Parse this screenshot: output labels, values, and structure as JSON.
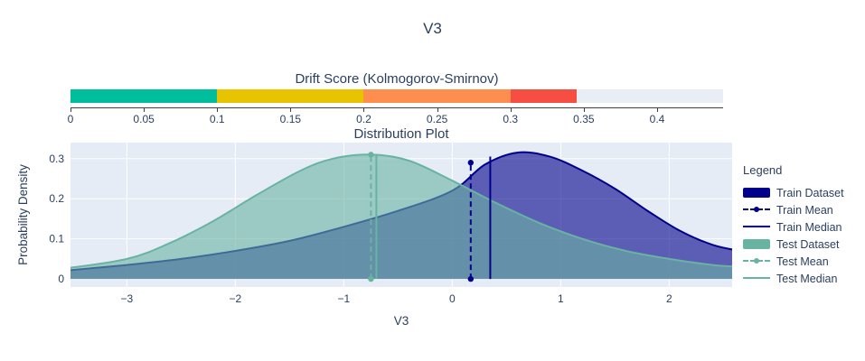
{
  "title": "V3",
  "text_color": "#2a3f5f",
  "gauge": {
    "title": "Drift Score (Kolmogorov-Smirnov)",
    "value": 0.345,
    "track_color": "#e9edf4",
    "axis": {
      "min": 0,
      "max": 0.445,
      "ticks": [
        0,
        0.05,
        0.1,
        0.15,
        0.2,
        0.25,
        0.3,
        0.35,
        0.4
      ]
    },
    "segments": [
      {
        "from": 0,
        "to": 0.1,
        "color": "#00be9b"
      },
      {
        "from": 0.1,
        "to": 0.2,
        "color": "#e8c400"
      },
      {
        "from": 0.2,
        "to": 0.3,
        "color": "#fd8e4e"
      },
      {
        "from": 0.3,
        "to": 0.345,
        "color": "#f64e42"
      }
    ]
  },
  "chart_data": {
    "type": "area",
    "title": "Distribution Plot",
    "xlabel": "V3",
    "ylabel": "Probability Density",
    "plot_bg": "#e5ecf6",
    "grid_color": "#ffffff",
    "xlim": [
      -3.52,
      2.58
    ],
    "ylim": [
      -0.02,
      0.34
    ],
    "xticks": [
      -3,
      -2,
      -1,
      0,
      1,
      2
    ],
    "yticks": [
      0,
      0.1,
      0.2,
      0.3
    ],
    "series": [
      {
        "name": "Train Dataset",
        "color": "#00008b",
        "fill_opacity": 0.6,
        "x": [
          -3.6,
          -3,
          -2.5,
          -2,
          -1.5,
          -1,
          -0.5,
          0,
          0.3,
          0.6,
          0.9,
          1.2,
          1.5,
          1.8,
          2.1,
          2.4,
          2.65
        ],
        "y": [
          0.02,
          0.035,
          0.05,
          0.07,
          0.095,
          0.13,
          0.17,
          0.22,
          0.285,
          0.315,
          0.305,
          0.27,
          0.225,
          0.17,
          0.12,
          0.085,
          0.07
        ]
      },
      {
        "name": "Test Dataset",
        "color": "#69b3a2",
        "fill_opacity": 0.6,
        "x": [
          -3.6,
          -3,
          -2.6,
          -2.2,
          -1.8,
          -1.4,
          -1.1,
          -0.75,
          -0.4,
          0,
          0.4,
          0.8,
          1.2,
          1.6,
          2,
          2.4,
          2.65
        ],
        "y": [
          0.025,
          0.05,
          0.09,
          0.145,
          0.21,
          0.27,
          0.3,
          0.31,
          0.295,
          0.245,
          0.19,
          0.14,
          0.1,
          0.07,
          0.05,
          0.035,
          0.03
        ]
      }
    ],
    "vlines": [
      {
        "name": "Train Mean",
        "x": 0.17,
        "height": 0.29,
        "style": "dashed",
        "color": "#00008b",
        "markers": true
      },
      {
        "name": "Train Median",
        "x": 0.35,
        "height": 0.305,
        "style": "solid",
        "color": "#00008b",
        "markers": false
      },
      {
        "name": "Test Mean",
        "x": -0.75,
        "height": 0.31,
        "style": "dashed",
        "color": "#69b3a2",
        "markers": true
      },
      {
        "name": "Test Median",
        "x": -0.7,
        "height": 0.312,
        "style": "solid",
        "color": "#69b3a2",
        "markers": false
      }
    ],
    "legend": {
      "title": "Legend",
      "items": [
        {
          "label": "Train Dataset",
          "swatch": "band",
          "color": "#00008b"
        },
        {
          "label": "Train Mean",
          "swatch": "dashed",
          "color": "#00008b"
        },
        {
          "label": "Train Median",
          "swatch": "solid",
          "color": "#00008b"
        },
        {
          "label": "Test Dataset",
          "swatch": "band",
          "color": "#69b3a2"
        },
        {
          "label": "Test Mean",
          "swatch": "dashed",
          "color": "#69b3a2"
        },
        {
          "label": "Test Median",
          "swatch": "solid",
          "color": "#69b3a2"
        }
      ]
    }
  }
}
